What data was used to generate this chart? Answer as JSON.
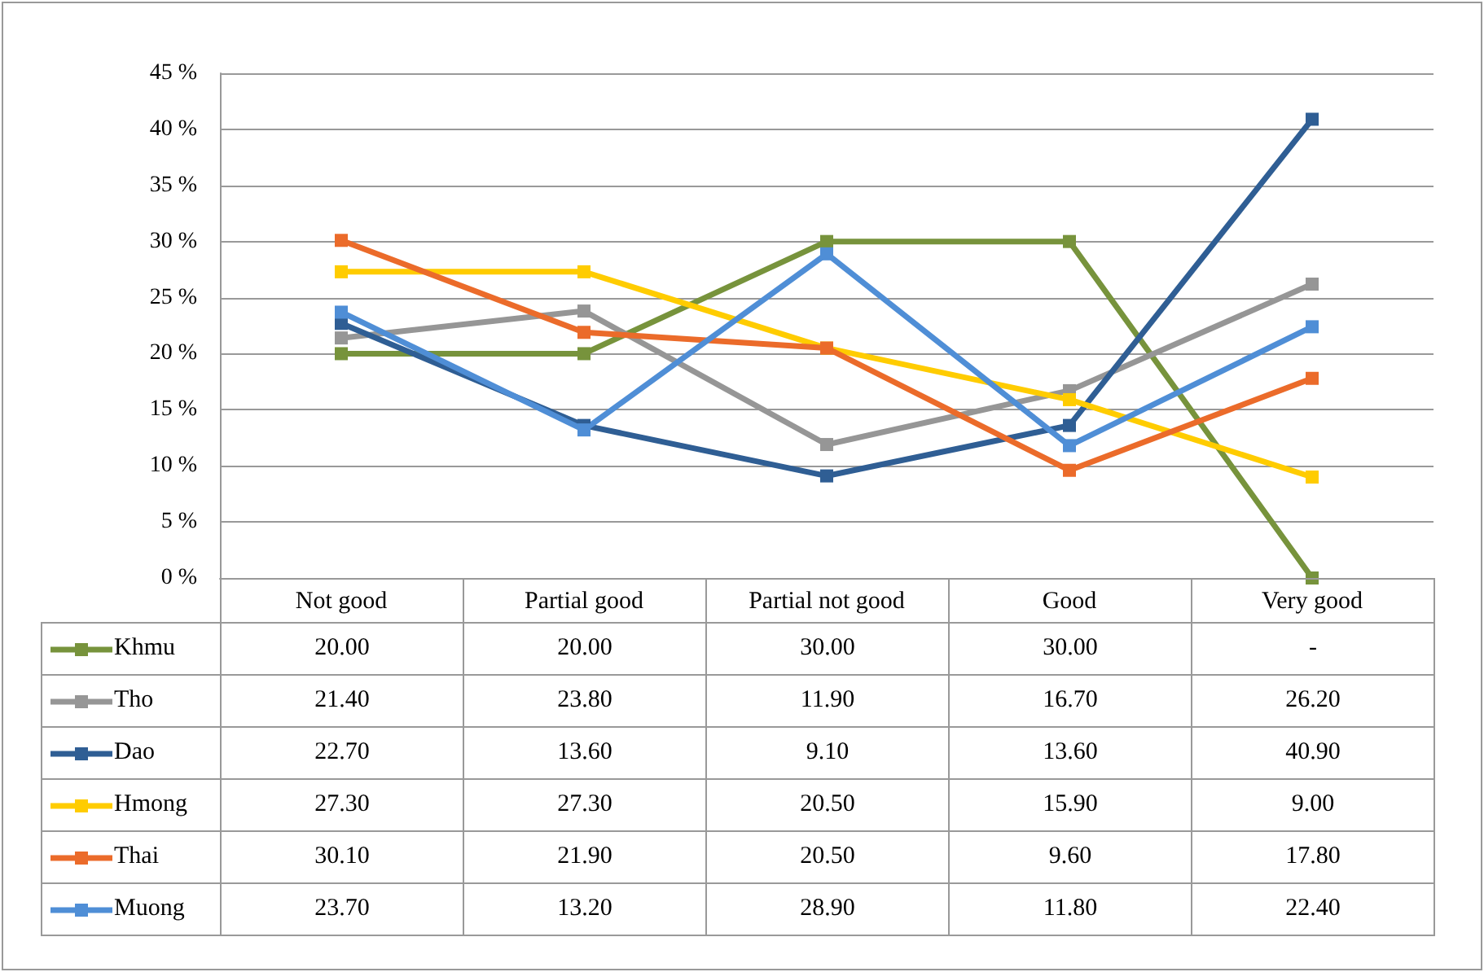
{
  "chart_data": {
    "type": "line",
    "categories": [
      "Not good",
      "Partial good",
      "Partial not good",
      "Good",
      "Very good"
    ],
    "series": [
      {
        "name": "Khmu",
        "color": "#77933c",
        "values": [
          20.0,
          20.0,
          30.0,
          30.0,
          0
        ],
        "value_labels": [
          "20.00",
          "20.00",
          "30.00",
          "30.00",
          "-"
        ]
      },
      {
        "name": "Tho",
        "color": "#969696",
        "values": [
          21.4,
          23.8,
          11.9,
          16.7,
          26.2
        ],
        "value_labels": [
          "21.40",
          "23.80",
          "11.90",
          "16.70",
          "26.20"
        ]
      },
      {
        "name": "Dao",
        "color": "#2f5e94",
        "values": [
          22.7,
          13.6,
          9.1,
          13.6,
          40.9
        ],
        "value_labels": [
          "22.70",
          "13.60",
          "9.10",
          "13.60",
          "40.90"
        ]
      },
      {
        "name": "Hmong",
        "color": "#ffcc00",
        "values": [
          27.3,
          27.3,
          20.5,
          15.9,
          9.0
        ],
        "value_labels": [
          "27.30",
          "27.30",
          "20.50",
          "15.90",
          "9.00"
        ]
      },
      {
        "name": "Thai",
        "color": "#eb6b2a",
        "values": [
          30.1,
          21.9,
          20.5,
          9.6,
          17.8
        ],
        "value_labels": [
          "30.10",
          "21.90",
          "20.50",
          "9.60",
          "17.80"
        ]
      },
      {
        "name": "Muong",
        "color": "#4f8ed6",
        "values": [
          23.7,
          13.2,
          28.9,
          11.8,
          22.4
        ],
        "value_labels": [
          "23.70",
          "13.20",
          "28.90",
          "11.80",
          "22.40"
        ]
      }
    ],
    "ylim": [
      0,
      45
    ],
    "yticks": [
      {
        "value": 0,
        "label": "0 %"
      },
      {
        "value": 5,
        "label": "5 %"
      },
      {
        "value": 10,
        "label": "10 %"
      },
      {
        "value": 15,
        "label": "15 %"
      },
      {
        "value": 20,
        "label": "20 %"
      },
      {
        "value": 25,
        "label": "25 %"
      },
      {
        "value": 30,
        "label": "30 %"
      },
      {
        "value": 35,
        "label": "35 %"
      },
      {
        "value": 40,
        "label": "40 %"
      },
      {
        "value": 45,
        "label": "45 %"
      }
    ],
    "grid": "y",
    "legend": "bottom",
    "marker": "square",
    "line_style": "solid"
  }
}
